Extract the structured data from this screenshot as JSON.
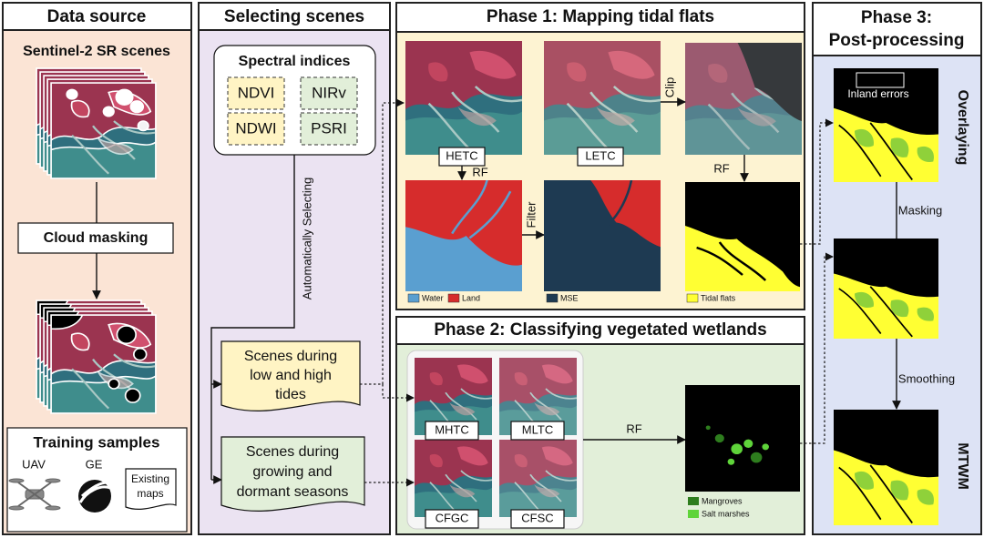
{
  "data_source": {
    "title": "Data source",
    "sentinel": "Sentinel-2 SR scenes",
    "cloud_masking": "Cloud masking",
    "training": {
      "title": "Training samples",
      "uav": "UAV",
      "ge": "GE",
      "existing": [
        "Existing",
        "maps"
      ]
    }
  },
  "selecting": {
    "title": "Selecting scenes",
    "spectral_title": "Spectral indices",
    "indices": [
      "NDVI",
      "NIRv",
      "NDWI",
      "PSRI"
    ],
    "auto": "Automatically Selecting",
    "tides": [
      "Scenes during",
      "low and high",
      "tides"
    ],
    "seasons": [
      "Scenes during",
      "growing and",
      "dormant seasons"
    ]
  },
  "phase1": {
    "title": "Phase 1: Mapping tidal flats",
    "hetc": "HETC",
    "letc": "LETC",
    "clip": "Clip",
    "rf_left": "RF",
    "filter": "Filter",
    "rf_right": "RF",
    "legend": {
      "water": "Water",
      "land": "Land",
      "mse": "MSE",
      "tidal_flats": "Tidal flats"
    }
  },
  "phase2": {
    "title": "Phase 2: Classifying vegetated wetlands",
    "composites": [
      "MHTC",
      "MLTC",
      "CFGC",
      "CFSC"
    ],
    "rf": "RF",
    "legend": {
      "mangroves": "Mangroves",
      "salt_marshes": "Salt marshes"
    }
  },
  "phase3": {
    "title": [
      "Phase 3:",
      "Post-processing"
    ],
    "inland_errors": "Inland errors",
    "overlaying": "Overlaying",
    "masking": "Masking",
    "smoothing": "Smoothing",
    "result": "MTWM"
  }
}
